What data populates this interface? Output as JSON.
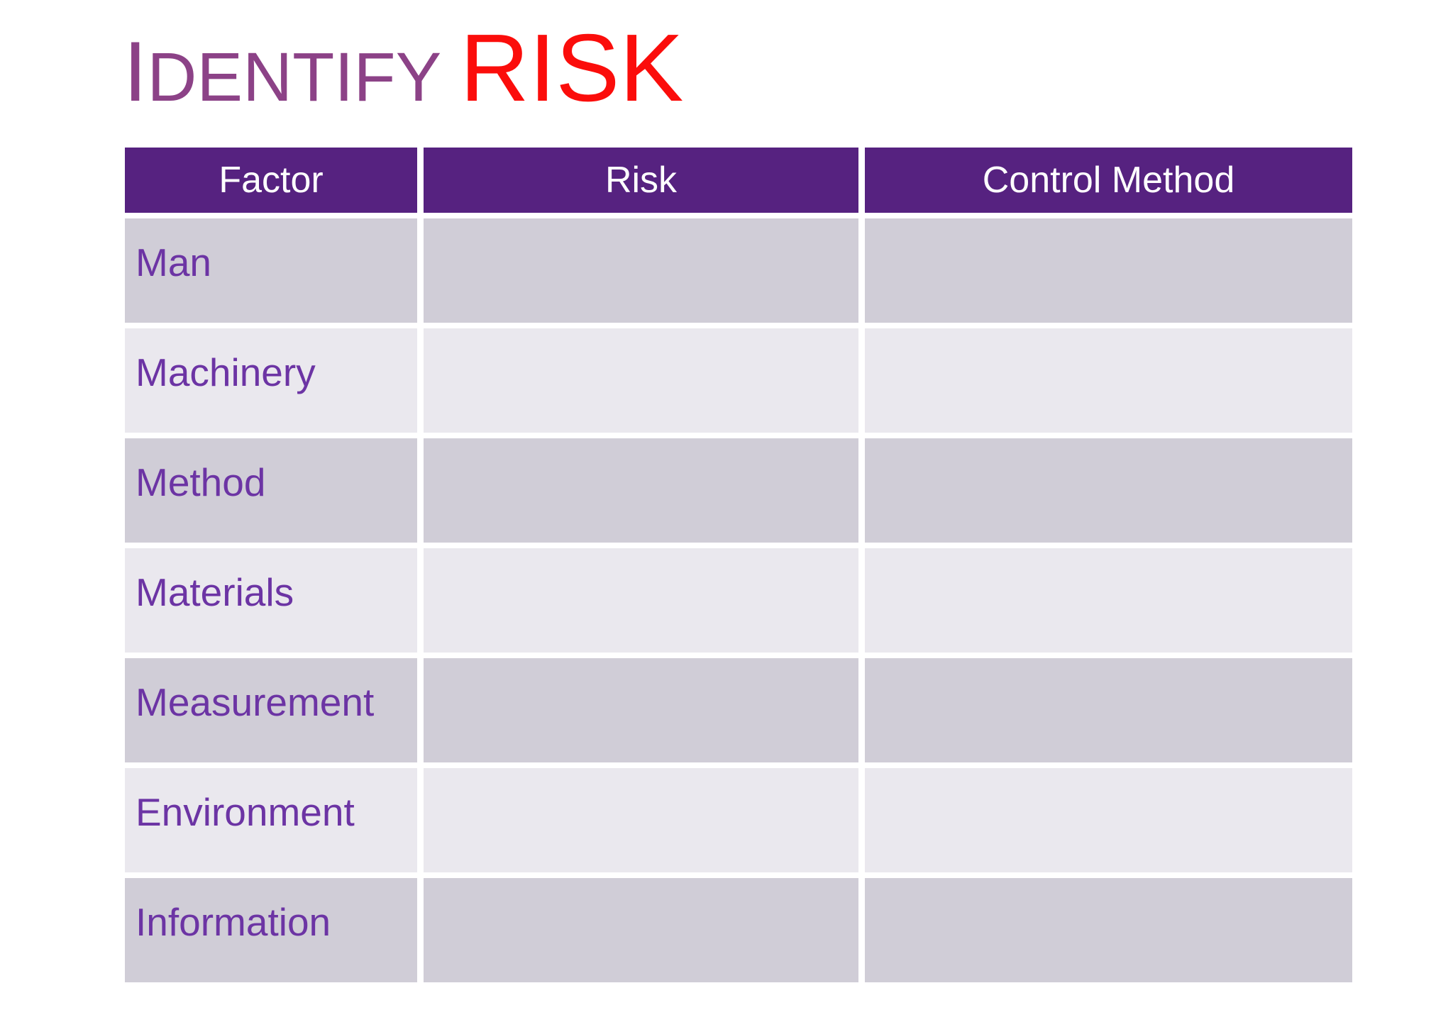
{
  "slide": {
    "title": {
      "lead": "I",
      "rest": "DENTIFY",
      "accent": "RISK"
    },
    "colors": {
      "background": "#FFFFFF",
      "title_purple": "#8C4287",
      "title_red": "#FB0D0B",
      "table_header_bg": "#562280",
      "table_header_text": "#FFFFFF",
      "row_band_dark": "#D0CDD7",
      "row_band_light": "#EAE8EE",
      "row_label_purple": "#6C34A4",
      "gutter_white": "#FFFFFF"
    },
    "table": {
      "headers": [
        "Factor",
        "Risk",
        "Control Method"
      ],
      "rows": [
        {
          "factor": "Man",
          "risk": "",
          "control_method": ""
        },
        {
          "factor": "Machinery",
          "risk": "",
          "control_method": ""
        },
        {
          "factor": "Method",
          "risk": "",
          "control_method": ""
        },
        {
          "factor": "Materials",
          "risk": "",
          "control_method": ""
        },
        {
          "factor": "Measurement",
          "risk": "",
          "control_method": ""
        },
        {
          "factor": "Environment",
          "risk": "",
          "control_method": ""
        },
        {
          "factor": "Information",
          "risk": "",
          "control_method": ""
        }
      ]
    }
  }
}
